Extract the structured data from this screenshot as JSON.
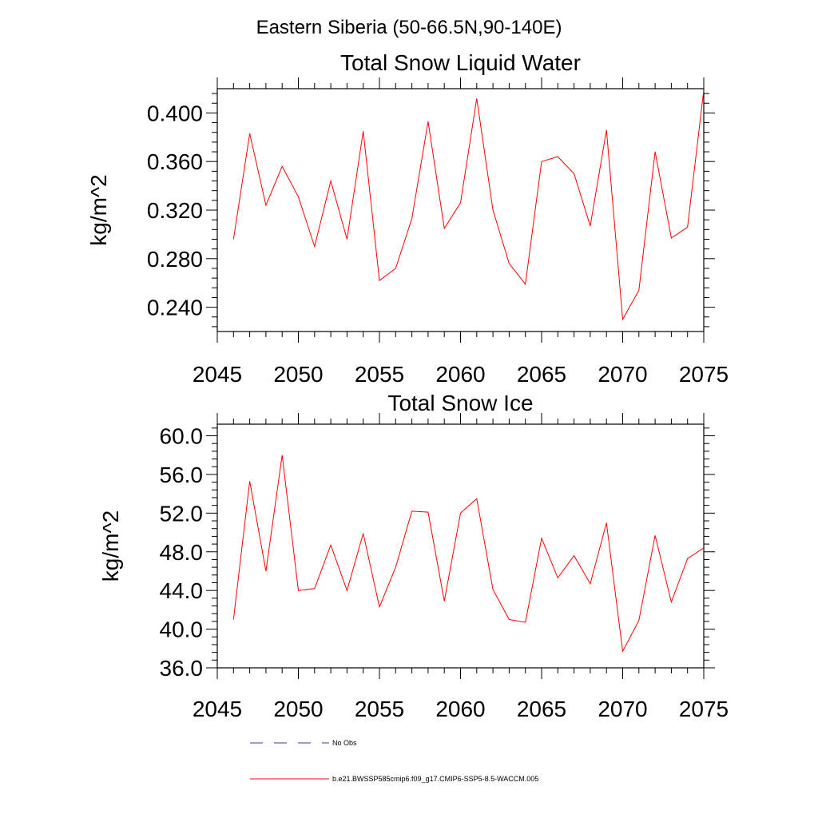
{
  "figure_title": "Eastern Siberia (50-66.5N,90-140E)",
  "legend": {
    "obs_label": "No Obs",
    "obs_color": "#3b3b8f",
    "model_label": "b.e21.BWSSP585cmip6.f09_g17.CMIP6-SSP5-8.5-WACCM.005",
    "model_color": "#ff0000"
  },
  "chart_data": [
    {
      "type": "line",
      "title": "Total Snow Liquid Water",
      "ylabel": "kg/m^2",
      "xlabel": "",
      "xlim": [
        2045,
        2075
      ],
      "ylim": [
        0.22,
        0.42
      ],
      "x_ticks": [
        "2045",
        "2050",
        "2055",
        "2060",
        "2065",
        "2070",
        "2075"
      ],
      "y_ticks": [
        "0.240",
        "0.280",
        "0.320",
        "0.360",
        "0.400"
      ],
      "series": [
        {
          "color": "#ff0000",
          "x": [
            2046,
            2047,
            2048,
            2049,
            2050,
            2051,
            2052,
            2053,
            2054,
            2055,
            2056,
            2057,
            2058,
            2059,
            2060,
            2061,
            2062,
            2063,
            2064,
            2065,
            2066,
            2067,
            2068,
            2069,
            2070,
            2071,
            2072,
            2073,
            2074,
            2075
          ],
          "values": [
            0.296,
            0.383,
            0.324,
            0.356,
            0.331,
            0.29,
            0.344,
            0.296,
            0.385,
            0.262,
            0.272,
            0.313,
            0.393,
            0.305,
            0.326,
            0.412,
            0.32,
            0.276,
            0.259,
            0.36,
            0.364,
            0.35,
            0.307,
            0.386,
            0.23,
            0.254,
            0.368,
            0.297,
            0.306,
            0.419
          ]
        }
      ]
    },
    {
      "type": "line",
      "title": "Total Snow Ice",
      "ylabel": "kg/m^2",
      "xlabel": "",
      "xlim": [
        2045,
        2075
      ],
      "ylim": [
        36.0,
        61.2
      ],
      "x_ticks": [
        "2045",
        "2050",
        "2055",
        "2060",
        "2065",
        "2070",
        "2075"
      ],
      "y_ticks": [
        "36.0",
        "40.0",
        "44.0",
        "48.0",
        "52.0",
        "56.0",
        "60.0"
      ],
      "series": [
        {
          "color": "#ff0000",
          "x": [
            2046,
            2047,
            2048,
            2049,
            2050,
            2051,
            2052,
            2053,
            2054,
            2055,
            2056,
            2057,
            2058,
            2059,
            2060,
            2061,
            2062,
            2063,
            2064,
            2065,
            2066,
            2067,
            2068,
            2069,
            2070,
            2071,
            2072,
            2073,
            2074,
            2075
          ],
          "values": [
            41.0,
            55.3,
            46.0,
            58.0,
            44.0,
            44.2,
            48.7,
            44.0,
            49.9,
            42.3,
            46.4,
            52.2,
            52.1,
            42.9,
            52.0,
            53.5,
            44.1,
            41.0,
            40.7,
            49.4,
            45.3,
            47.6,
            44.7,
            51.0,
            37.7,
            40.9,
            49.7,
            42.8,
            47.3,
            48.4
          ]
        }
      ]
    }
  ]
}
